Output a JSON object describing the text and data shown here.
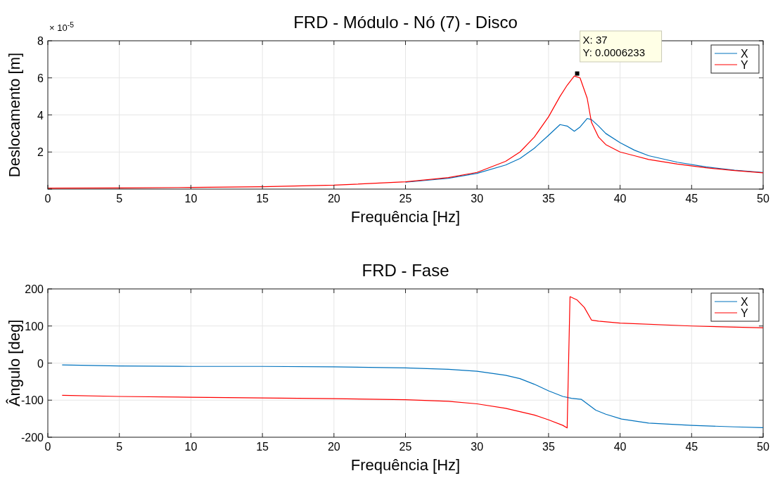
{
  "chart_data": [
    {
      "type": "line",
      "title": "FRD - Módulo - Nó (7) - Disco",
      "xlabel": "Frequência [Hz]",
      "ylabel": "Deslocamento [m]",
      "xlim": [
        0,
        50
      ],
      "xticks": [
        0,
        5,
        10,
        15,
        20,
        25,
        30,
        35,
        40,
        45,
        50
      ],
      "ylim": [
        0,
        8
      ],
      "yticks": [
        {
          "value": 0,
          "label": null
        },
        2,
        4,
        6,
        8
      ],
      "grid": true,
      "legend": "top right",
      "line_style": "solid",
      "marker": "none",
      "annotations": [
        "× 10$^{-5}$",
        {
          "text": "X: 37\nY: 0.0006233",
          "x": 37,
          "y": 6.233
        }
      ],
      "x": [
        0,
        5,
        10,
        15,
        20,
        25,
        28,
        30,
        32,
        33,
        34,
        35,
        35.8,
        36.3,
        36.8,
        37.2,
        37.7,
        38,
        38.5,
        39,
        40,
        41,
        42,
        44,
        46,
        48,
        50
      ],
      "series": [
        {
          "name": "X",
          "color": "#0072bd",
          "values": [
            null,
            null,
            null,
            null,
            null,
            0.37,
            0.58,
            0.85,
            1.3,
            1.65,
            2.2,
            2.9,
            3.48,
            3.4,
            3.12,
            3.35,
            3.81,
            3.75,
            3.4,
            3.0,
            2.5,
            2.1,
            1.8,
            1.45,
            1.2,
            1.02,
            0.9
          ]
        },
        {
          "name": "Y",
          "color": "#ff0000",
          "values": [
            0.05,
            0.06,
            0.09,
            0.13,
            0.21,
            0.39,
            0.62,
            0.9,
            1.5,
            2.0,
            2.8,
            3.9,
            5.0,
            5.6,
            6.1,
            6.0,
            4.9,
            3.6,
            2.8,
            2.4,
            2.0,
            1.8,
            1.6,
            1.35,
            1.15,
            1.0,
            0.88
          ]
        }
      ]
    },
    {
      "type": "line",
      "title": "FRD - Fase",
      "xlabel": "Frequência [Hz]",
      "ylabel": "Ângulo [deg]",
      "xlim": [
        0,
        50
      ],
      "xticks": [
        0,
        5,
        10,
        15,
        20,
        25,
        30,
        35,
        40,
        45,
        50
      ],
      "ylim": [
        -200,
        200
      ],
      "yticks": [
        -200,
        -100,
        0,
        100,
        200
      ],
      "grid": true,
      "legend": "top right",
      "line_style": "solid",
      "marker": "none",
      "series": [
        {
          "name": "X",
          "color": "#0072bd",
          "x": [
            1,
            5,
            10,
            15,
            20,
            25,
            28,
            30,
            32,
            33,
            34,
            35,
            36,
            36.6,
            37.3,
            38.3,
            39,
            40.1,
            42,
            45,
            48,
            50
          ],
          "values": [
            -5,
            -8,
            -9,
            -9,
            -10,
            -13,
            -17,
            -22,
            -33,
            -42,
            -57,
            -75,
            -90,
            -95,
            -98,
            -127,
            -138,
            -151,
            -162,
            -168,
            -172,
            -174
          ]
        },
        {
          "name": "Y",
          "color": "#ff0000",
          "x": [
            1,
            5,
            10,
            15,
            20,
            25,
            28,
            30,
            32,
            34,
            35,
            36,
            36.3,
            36.5,
            37,
            37.5,
            38,
            38.5,
            40,
            45,
            50
          ],
          "values": [
            -87,
            -90,
            -92,
            -94,
            -96,
            -99,
            -103,
            -110,
            -122,
            -140,
            -153,
            -168,
            -175,
            179,
            170,
            150,
            116,
            113,
            108,
            100,
            95
          ]
        }
      ]
    }
  ]
}
